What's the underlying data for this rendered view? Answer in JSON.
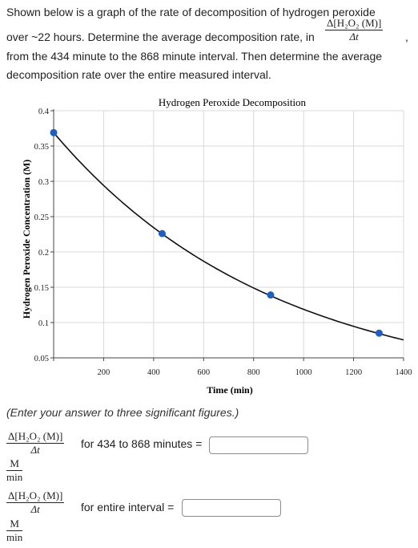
{
  "question": {
    "line1": "Shown below is a graph of the rate of decomposition of hydrogen peroxide",
    "line2": "over ~22 hours. Determine the average decomposition rate, in",
    "line2_end": ",",
    "rate_fraction": {
      "numerator": "Δ[H₂O₂ (M)]",
      "denominator": "Δt"
    },
    "line3": "from the 434 minute to the 868 minute interval. Then determine the average",
    "line4": "decomposition rate over the entire measured interval."
  },
  "chart_data": {
    "type": "line",
    "title": "Hydrogen Peroxide Decomposition",
    "xlabel": "Time (min)",
    "ylabel": "Hydrogen Peroxide Concentration (M)",
    "xlim": [
      0,
      1400
    ],
    "ylim": [
      0.05,
      0.4
    ],
    "x_ticks": [
      "200",
      "400",
      "600",
      "800",
      "1000",
      "1200",
      "1400"
    ],
    "y_ticks": [
      "0.05",
      "0.1",
      "0.15",
      "0.2",
      "0.25",
      "0.3",
      "0.35",
      "0.4"
    ],
    "grid": true,
    "curve": {
      "c0": 0.369,
      "k": 0.001134,
      "x_start": 0,
      "x_end": 1400
    },
    "points": [
      {
        "x": 0,
        "y": 0.369
      },
      {
        "x": 434,
        "y": 0.226
      },
      {
        "x": 868,
        "y": 0.139
      },
      {
        "x": 1302,
        "y": 0.085
      }
    ],
    "colors": {
      "curve": "#111111",
      "points": "#1f5fbf",
      "grid": "#d9d9d9"
    }
  },
  "note": "(Enter your answer to three significant figures.)",
  "answers": [
    {
      "fraction": {
        "numerator": "Δ[H₂O₂ (M)]",
        "denominator": "Δt"
      },
      "label": "for 434 to 868 minutes =",
      "value": "",
      "unit": {
        "numerator": "M",
        "denominator": "min"
      }
    },
    {
      "fraction": {
        "numerator": "Δ[H₂O₂ (M)]",
        "denominator": "Δt"
      },
      "label": "for entire interval =",
      "value": "",
      "unit": {
        "numerator": "M",
        "denominator": "min"
      }
    }
  ]
}
